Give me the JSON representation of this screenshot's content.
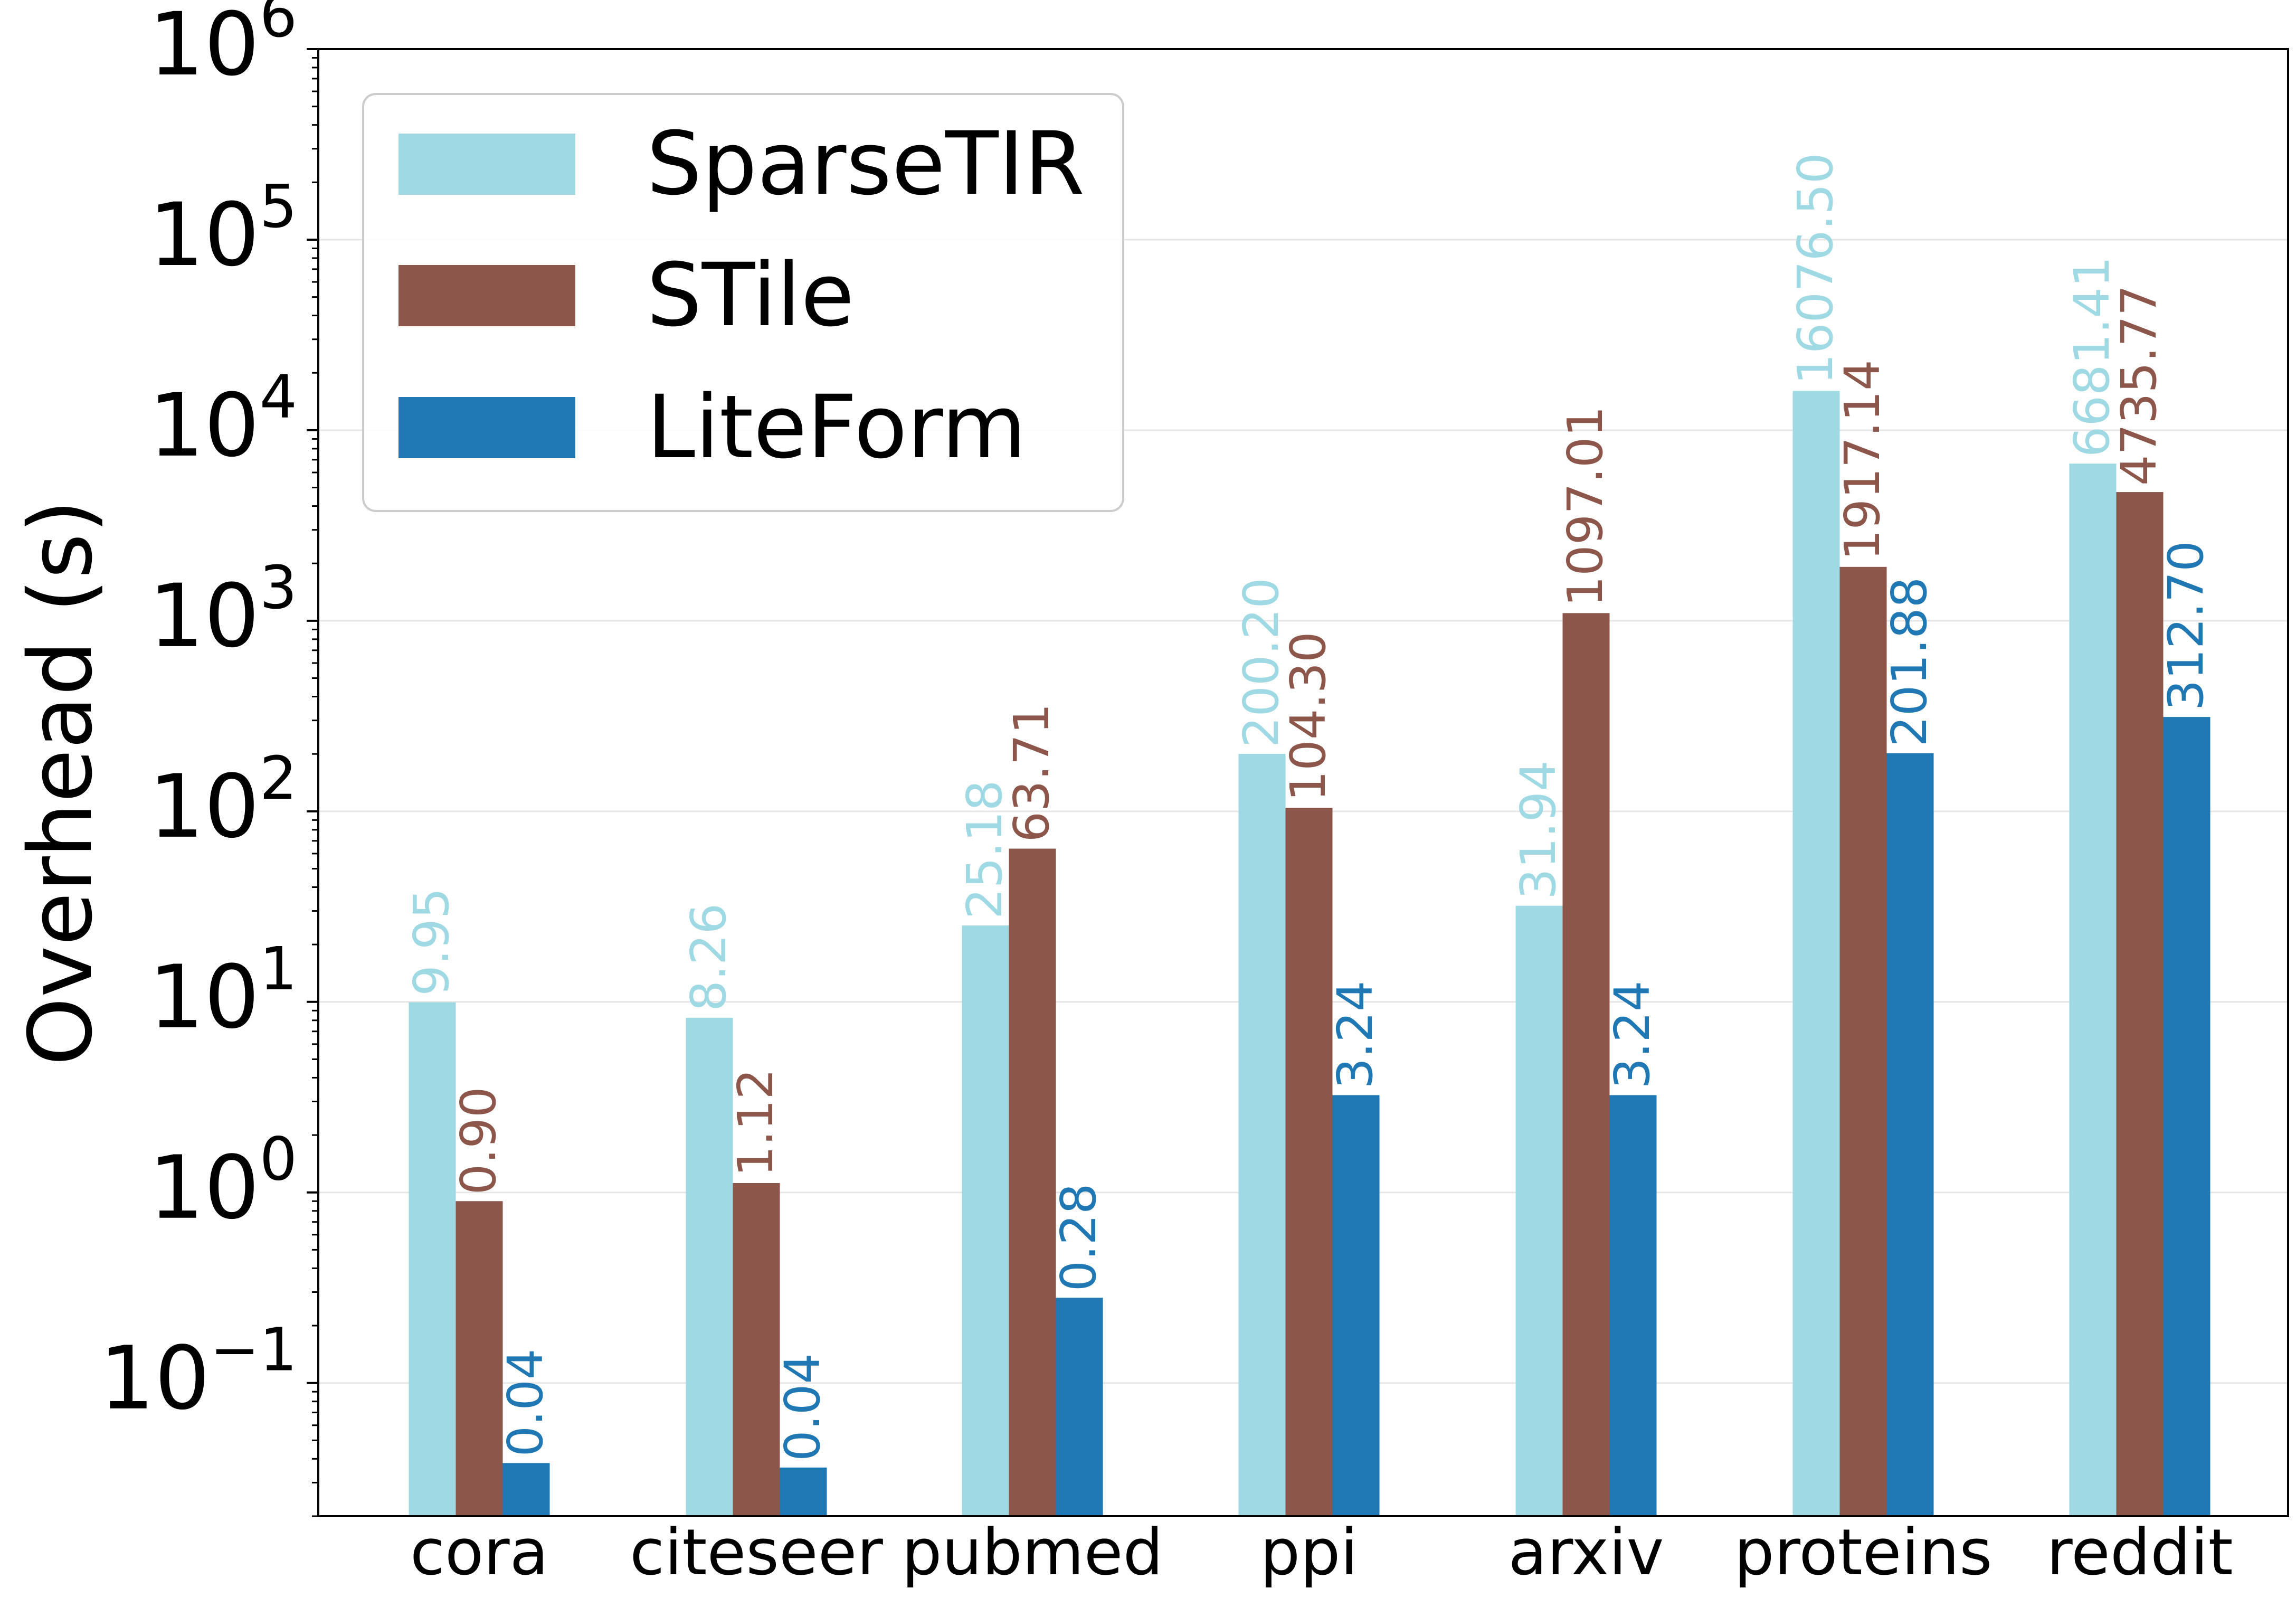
{
  "chart_data": {
    "type": "bar",
    "title": "",
    "xlabel": "",
    "ylabel": "Overhead (s)",
    "yscale": "log",
    "ylim": [
      0.02,
      1000000
    ],
    "ytick_exponents": [
      -1,
      0,
      1,
      2,
      3,
      4,
      5,
      6
    ],
    "ytick_base": "10",
    "grid": "horizontal",
    "legend_position": "top-left",
    "categories": [
      "cora",
      "citeseer",
      "pubmed",
      "ppi",
      "arxiv",
      "proteins",
      "reddit"
    ],
    "series": [
      {
        "name": "SparseTIR",
        "color": "#9fd9e4",
        "values": [
          9.95,
          8.26,
          25.18,
          200.2,
          31.94,
          16076.5,
          6681.41
        ],
        "labels": [
          "9.95",
          "8.26",
          "25.18",
          "200.20",
          "31.94",
          "16076.50",
          "6681.41"
        ]
      },
      {
        "name": "STile",
        "color": "#8c564b",
        "values": [
          0.9,
          1.12,
          63.71,
          104.3,
          1097.01,
          1917.14,
          4735.77
        ],
        "labels": [
          "0.90",
          "1.12",
          "63.71",
          "104.30",
          "1097.01",
          "1917.14",
          "4735.77"
        ]
      },
      {
        "name": "LiteForm",
        "color": "#1f77b4",
        "values": [
          0.038,
          0.036,
          0.28,
          3.24,
          3.24,
          201.88,
          312.7
        ],
        "labels": [
          "0.04",
          "0.04",
          "0.28",
          "3.24",
          "3.24",
          "201.88",
          "312.70"
        ]
      }
    ]
  }
}
